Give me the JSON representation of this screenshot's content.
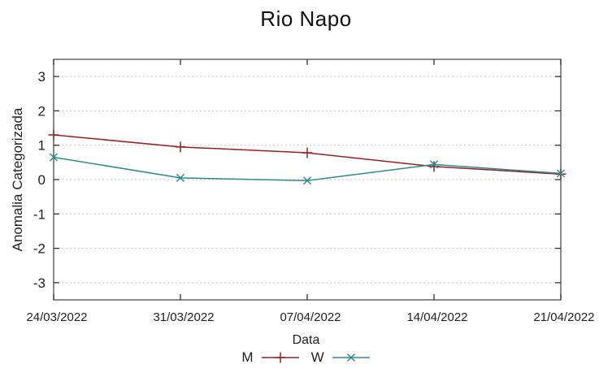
{
  "chart_data": {
    "type": "line",
    "title": "Rio Napo",
    "xlabel": "Data",
    "ylabel": "Anomalia Categorizada",
    "x_tick_labels": [
      "24/03/2022",
      "31/03/2022",
      "07/04/2022",
      "14/04/2022",
      "21/04/2022"
    ],
    "y_ticks": [
      -3,
      -2,
      -1,
      0,
      1,
      2,
      3
    ],
    "ylim": [
      -3.5,
      3.5
    ],
    "grid": "horizontal-dotted",
    "legend_position": "bottom-center",
    "series": [
      {
        "name": "M",
        "color": "#992020",
        "marker": "plus",
        "values": [
          1.3,
          0.95,
          0.78,
          0.38,
          0.16
        ]
      },
      {
        "name": "W",
        "color": "#2e8b8b",
        "marker": "cross",
        "values": [
          0.65,
          0.05,
          -0.03,
          0.44,
          0.18
        ]
      }
    ],
    "colors": {
      "grid": "#c4c4c4",
      "border": "#4a4a4a",
      "tick": "#333333",
      "text": "#1f1f1f"
    }
  }
}
